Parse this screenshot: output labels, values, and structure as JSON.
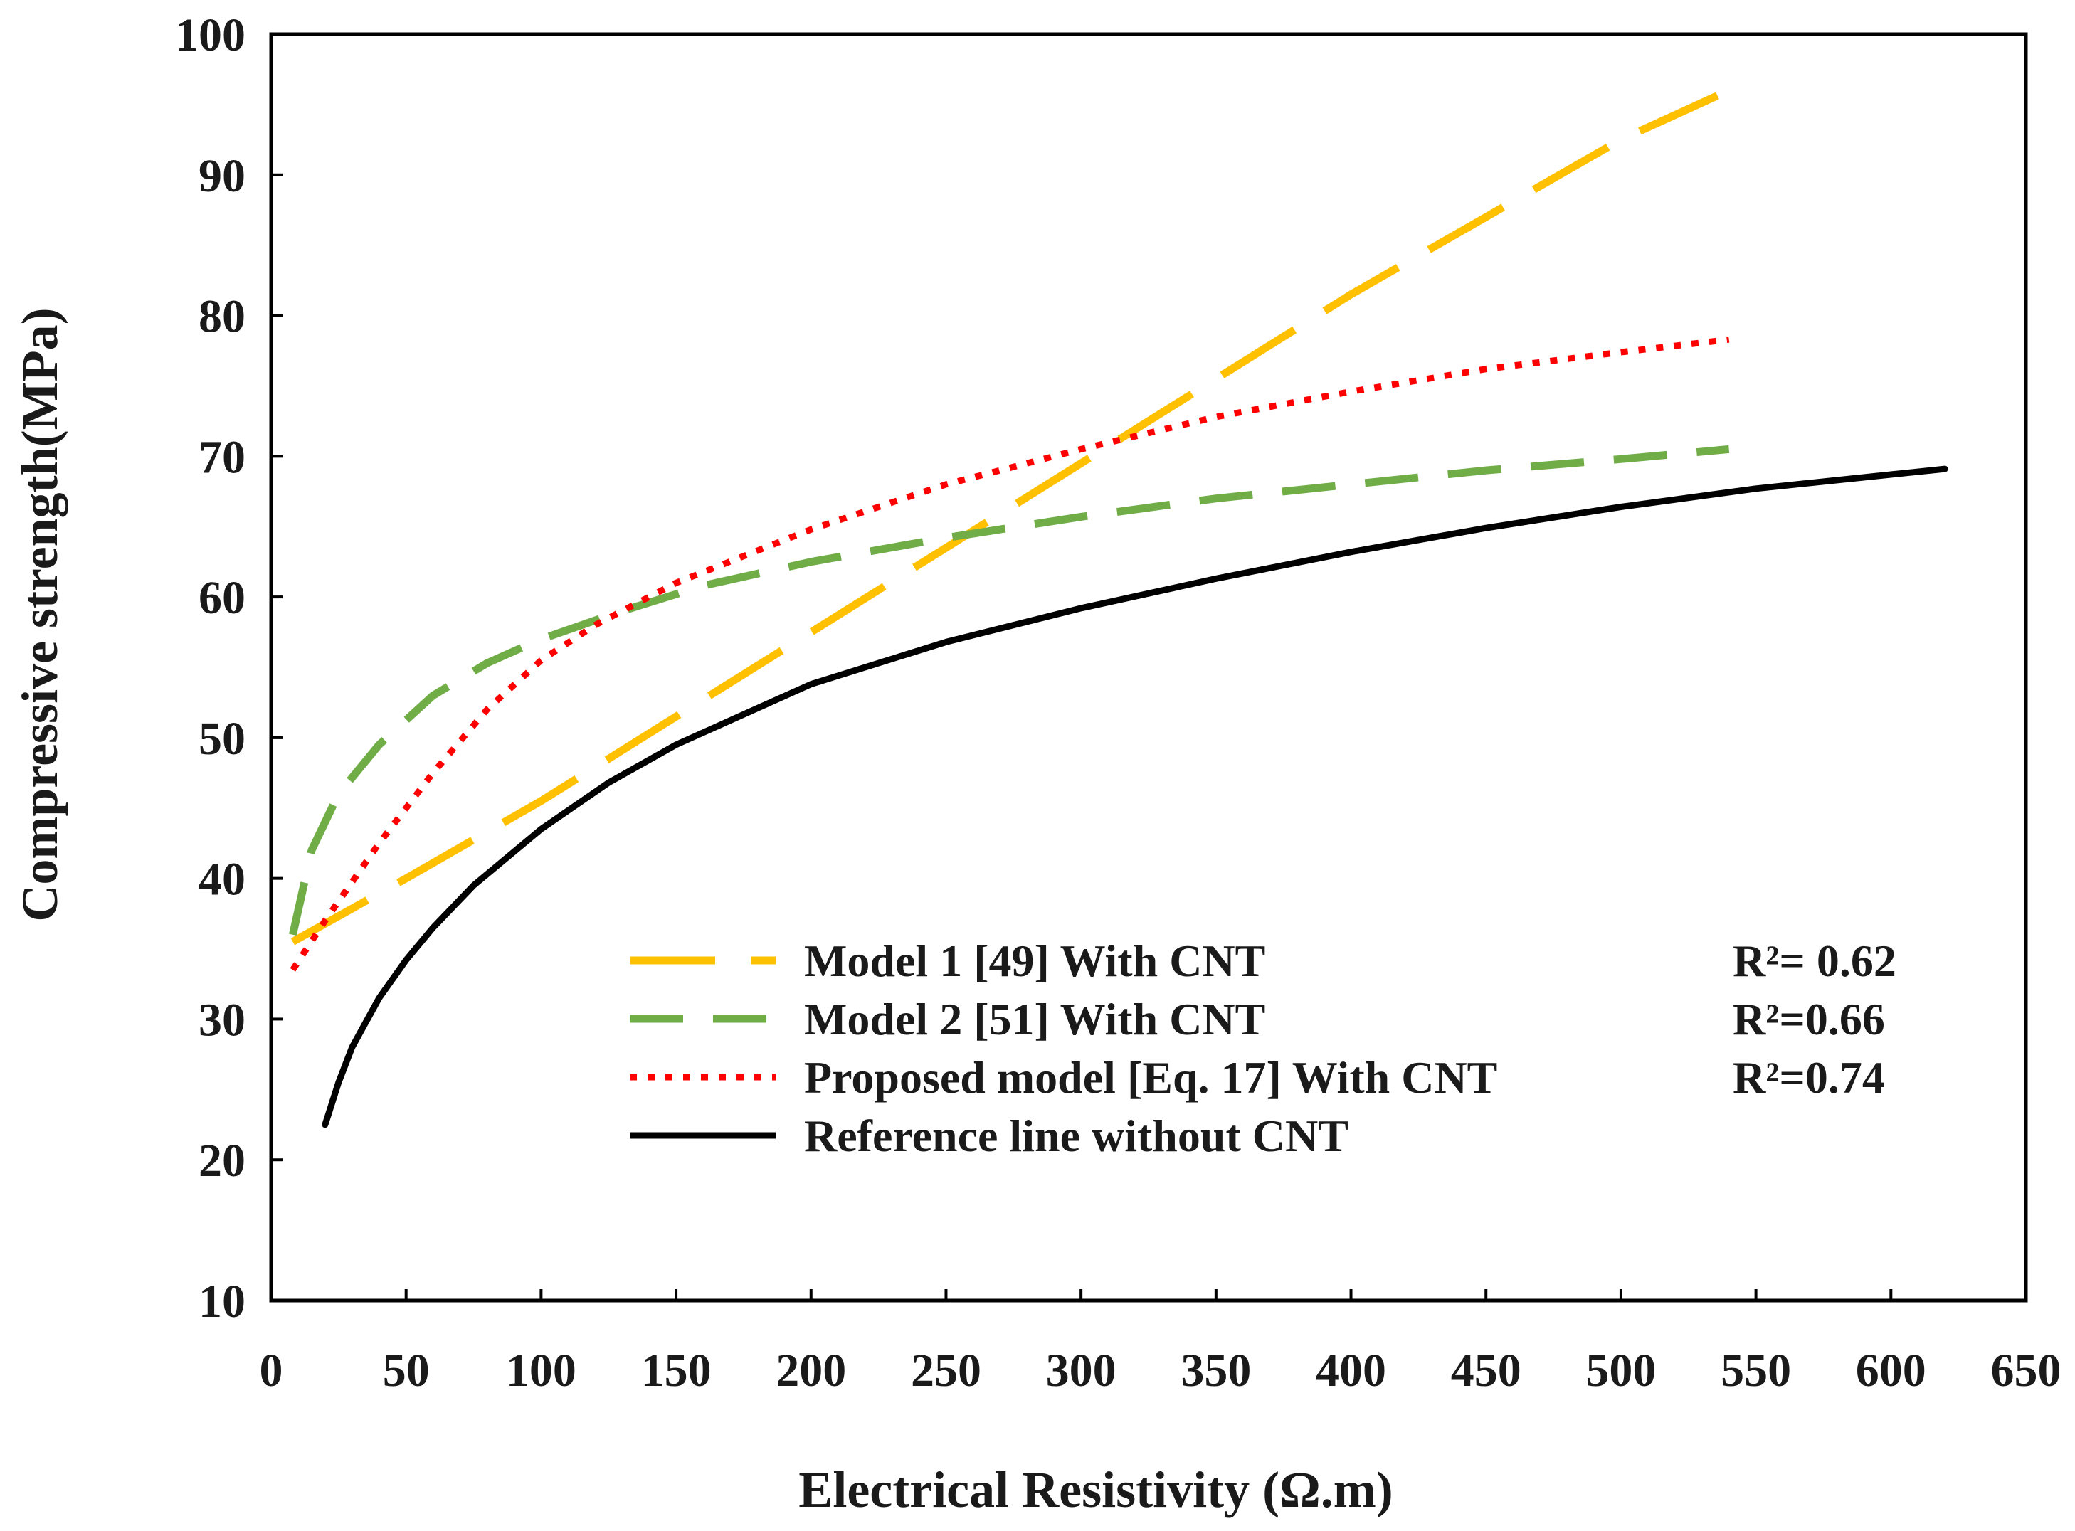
{
  "chart_data": {
    "type": "line",
    "xlabel": "Electrical Resistivity (Ω.m)",
    "ylabel": "Compressive strength(MPa)",
    "xlim": [
      0,
      650
    ],
    "ylim": [
      10,
      100
    ],
    "x_ticks": [
      0,
      50,
      100,
      150,
      200,
      250,
      300,
      350,
      400,
      450,
      500,
      550,
      600,
      650
    ],
    "y_ticks": [
      10,
      20,
      30,
      40,
      50,
      60,
      70,
      80,
      90,
      100
    ],
    "grid": false,
    "legend_position": "bottom-center",
    "series": [
      {
        "name": "Model 1  [49] With CNT",
        "r2": "R²= 0.62",
        "color": "#FFC000",
        "style": "long-dash",
        "x": [
          8,
          50,
          100,
          150,
          200,
          250,
          300,
          350,
          400,
          450,
          500,
          540
        ],
        "y": [
          35.5,
          40.0,
          45.5,
          51.5,
          57.5,
          63.5,
          69.5,
          75.5,
          81.5,
          87.0,
          92.5,
          96.0
        ]
      },
      {
        "name": "Model 2  [51] With CNT",
        "r2": "R²=0.66",
        "color": "#70AD47",
        "style": "dash",
        "x": [
          8,
          15,
          25,
          40,
          60,
          80,
          100,
          130,
          160,
          200,
          250,
          300,
          350,
          400,
          450,
          500,
          540
        ],
        "y": [
          36.0,
          42.0,
          46.0,
          49.5,
          53.0,
          55.3,
          57.0,
          59.0,
          60.8,
          62.5,
          64.2,
          65.7,
          67.0,
          68.0,
          69.0,
          69.8,
          70.5
        ]
      },
      {
        "name": "Proposed model [Eq. 17] With CNT",
        "r2": "R²=0.74",
        "color": "#FF0000",
        "style": "dot",
        "x": [
          8,
          20,
          40,
          60,
          80,
          100,
          120,
          150,
          200,
          250,
          300,
          350,
          400,
          450,
          500,
          540
        ],
        "y": [
          33.5,
          37.0,
          42.5,
          47.5,
          52.0,
          55.5,
          58.0,
          61.0,
          64.8,
          68.0,
          70.5,
          72.8,
          74.6,
          76.2,
          77.4,
          78.3
        ]
      },
      {
        "name": "Reference line without CNT",
        "r2": "",
        "color": "#000000",
        "style": "solid",
        "x": [
          20,
          25,
          30,
          40,
          50,
          60,
          75,
          100,
          125,
          150,
          200,
          250,
          300,
          350,
          400,
          450,
          500,
          550,
          600,
          620
        ],
        "y": [
          22.5,
          25.5,
          28.0,
          31.5,
          34.2,
          36.5,
          39.5,
          43.5,
          46.8,
          49.5,
          53.8,
          56.8,
          59.2,
          61.3,
          63.2,
          64.9,
          66.4,
          67.7,
          68.7,
          69.1
        ]
      }
    ]
  }
}
